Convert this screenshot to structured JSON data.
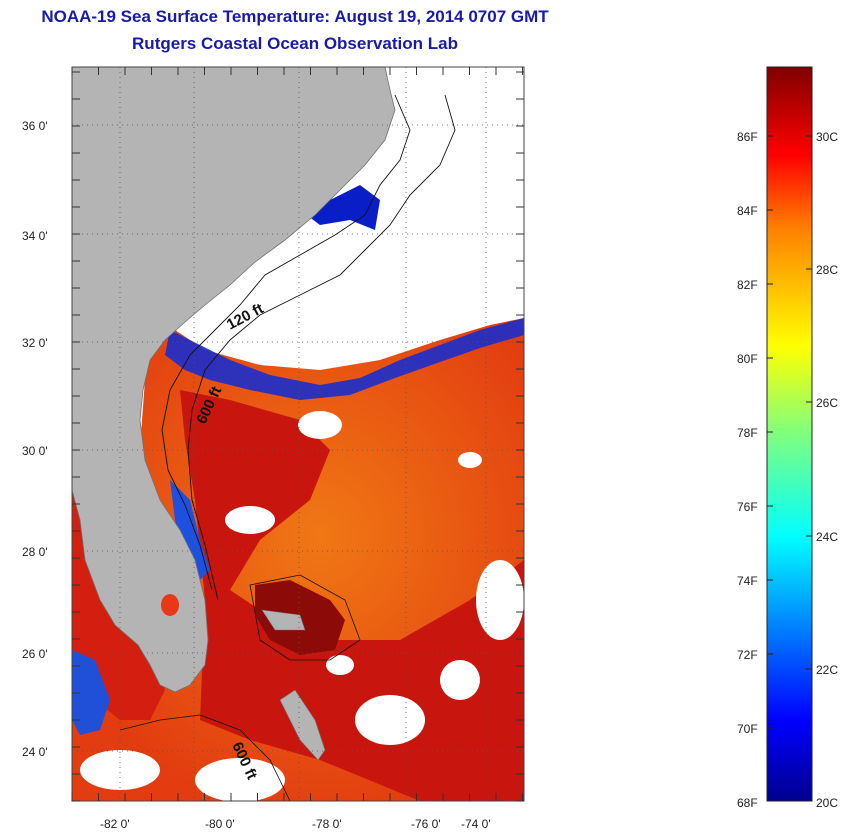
{
  "header": {
    "title": "NOAA-19 Sea Surface Temperature:  August 19, 2014 0707 GMT",
    "subtitle": "Rutgers Coastal Ocean Observation Lab"
  },
  "map": {
    "lat_labels": [
      "36 0'",
      "34 0'",
      "32 0'",
      "30 0'",
      "28 0'",
      "26 0'",
      "24 0'"
    ],
    "lon_labels": [
      "-82 0'",
      "-80 0'",
      "-78 0'",
      "-76 0'",
      "-74 0'"
    ],
    "contour_labels": [
      "120 ft",
      "600 ft",
      "600 ft"
    ],
    "colors": {
      "land": "#b4b4b4",
      "cloud": "#ffffff",
      "warm": "#d81d10",
      "cool": "#0a1ec8"
    }
  },
  "colorbar": {
    "fahrenheit_labels": [
      "86F",
      "84F",
      "82F",
      "80F",
      "78F",
      "76F",
      "74F",
      "72F",
      "70F",
      "68F"
    ],
    "celsius_labels": [
      "30C",
      "28C",
      "26C",
      "24C",
      "22C",
      "20C"
    ],
    "range_c": [
      20,
      31.2
    ]
  }
}
